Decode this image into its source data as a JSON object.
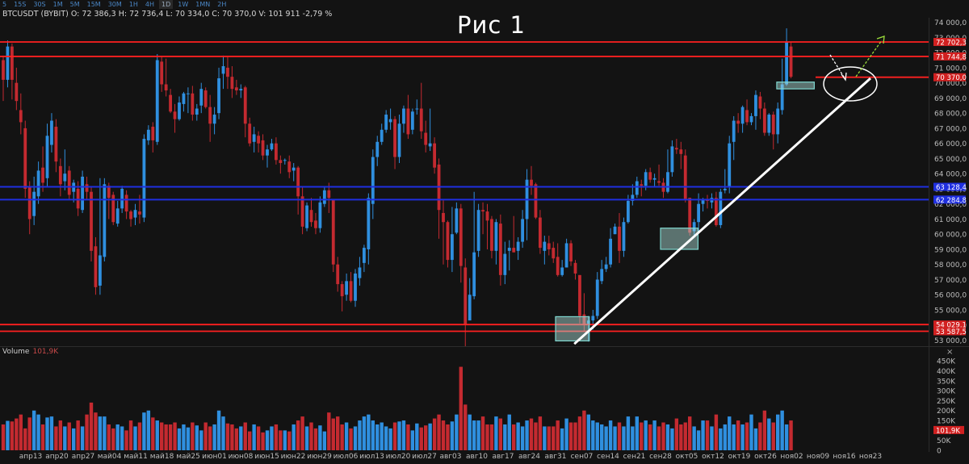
{
  "toolbar": {
    "timeframes": [
      "5",
      "15S",
      "30S",
      "1M",
      "5M",
      "15M",
      "30M",
      "1H",
      "4H",
      "1D",
      "1W",
      "1MN",
      "2H"
    ],
    "active": "1D"
  },
  "header": {
    "info": "BTCUSDT (BYBIT) O: 72 386,3 H: 72 736,4 L: 70 334,0 C: 70 370,0 V: 101 911  -2,79 %",
    "title": "Рис 1"
  },
  "volume_panel": {
    "label": "Volume",
    "value": "101,9K",
    "close": "×"
  },
  "colors": {
    "up": "#2f8fdf",
    "down": "#c42a30",
    "red_line": "#ff2020",
    "blue_line": "#1f2fe0",
    "trend": "#ffffff",
    "zone": "#7fd8d0"
  },
  "chart_data": {
    "type": "candlestick",
    "symbol": "BTCUSDT",
    "exchange": "BYBIT",
    "timeframe": "1D",
    "title": "Рис 1",
    "y_ticks": [
      "74 000,0",
      "73 000,0",
      "72 000,0",
      "71 000,0",
      "70 000,0",
      "69 000,0",
      "68 000,0",
      "67 000,0",
      "66 000,0",
      "65 000,0",
      "64 000,0",
      "63 000,0",
      "62 000,0",
      "61 000,0",
      "60 000,0",
      "59 000,0",
      "58 000,0",
      "57 000,0",
      "56 000,0",
      "55 000,0",
      "54 000,0",
      "53 000,0"
    ],
    "ylim": [
      52600,
      74300
    ],
    "x_ticks": [
      "апр13",
      "апр20",
      "апр27",
      "май04",
      "май11",
      "май18",
      "май25",
      "июн01",
      "июн08",
      "июн15",
      "июн22",
      "июн29",
      "июл06",
      "июл13",
      "июл20",
      "июл27",
      "авг03",
      "авг10",
      "авг17",
      "авг24",
      "авг31",
      "сен07",
      "сен14",
      "сен21",
      "сен28",
      "окт05",
      "окт12",
      "окт19",
      "окт26",
      "ноя02",
      "ноя09",
      "ноя16",
      "ноя23"
    ],
    "horizontal_levels": [
      {
        "value": 72702.3,
        "label": "72 702,3",
        "color": "red"
      },
      {
        "value": 71744.8,
        "label": "71 744,8",
        "color": "red"
      },
      {
        "value": 70370.0,
        "label": "70 370,0",
        "color": "red"
      },
      {
        "value": 63128.4,
        "label": "63 128,4",
        "color": "blue"
      },
      {
        "value": 62284.8,
        "label": "62 284,8",
        "color": "blue"
      },
      {
        "value": 54029.1,
        "label": "54 029,1",
        "color": "red"
      },
      {
        "value": 53587.5,
        "label": "53 587,5",
        "color": "red"
      }
    ],
    "trendline": {
      "from": {
        "date": "сен05",
        "value": 52750
      },
      "to": {
        "date": "ноя23",
        "value": 70300
      }
    },
    "zones": [
      {
        "from": "авг31",
        "to": "сен09",
        "low": 52950,
        "high": 54550
      },
      {
        "from": "сен28",
        "to": "окт08",
        "low": 59000,
        "high": 60400
      },
      {
        "from": "окт29",
        "to": "ноя08",
        "low": 69600,
        "high": 70050
      }
    ],
    "candles": [
      [
        71.5,
        70.2,
        71.8,
        68.8
      ],
      [
        70.2,
        72.4,
        72.8,
        69.7
      ],
      [
        72.4,
        70.2,
        72.6,
        68.9
      ],
      [
        70.0,
        68.8,
        71.0,
        68.2
      ],
      [
        68.2,
        67.4,
        69.3,
        66.6
      ],
      [
        67.0,
        63.0,
        67.5,
        62.4
      ],
      [
        63.1,
        61.0,
        63.5,
        60.0
      ],
      [
        61.2,
        62.8,
        63.8,
        60.6
      ],
      [
        62.5,
        64.2,
        64.8,
        62.0
      ],
      [
        64.4,
        63.4,
        65.8,
        62.8
      ],
      [
        63.7,
        66.5,
        67.3,
        63.1
      ],
      [
        65.9,
        67.5,
        68.0,
        65.4
      ],
      [
        67.1,
        64.8,
        67.6,
        64.1
      ],
      [
        64.5,
        63.3,
        65.0,
        62.5
      ],
      [
        63.5,
        64.0,
        65.6,
        62.9
      ],
      [
        64.2,
        62.6,
        64.5,
        62.3
      ],
      [
        62.8,
        63.4,
        63.6,
        62.1
      ],
      [
        63.0,
        61.7,
        63.5,
        61.2
      ],
      [
        61.6,
        63.8,
        64.2,
        61.4
      ],
      [
        63.3,
        62.8,
        63.8,
        62.3
      ],
      [
        62.8,
        58.9,
        63.1,
        58.2
      ],
      [
        59.2,
        56.5,
        59.8,
        56.0
      ],
      [
        56.6,
        58.6,
        63.7,
        56.0
      ],
      [
        58.5,
        63.3,
        63.7,
        58.2
      ],
      [
        63.2,
        62.4,
        63.4,
        61.0
      ],
      [
        62.6,
        60.8,
        62.8,
        60.6
      ],
      [
        60.7,
        61.7,
        62.2,
        60.5
      ],
      [
        61.7,
        63.0,
        63.2,
        61.4
      ],
      [
        62.6,
        61.5,
        62.9,
        61.0
      ],
      [
        61.5,
        61.0,
        61.6,
        60.5
      ],
      [
        61.1,
        61.6,
        62.0,
        60.6
      ],
      [
        61.5,
        61.3,
        62.6,
        60.7
      ],
      [
        61.1,
        66.3,
        66.6,
        60.8
      ],
      [
        66.2,
        66.9,
        67.2,
        65.9
      ],
      [
        67.1,
        66.2,
        67.4,
        65.4
      ],
      [
        66.1,
        71.5,
        71.9,
        65.9
      ],
      [
        71.4,
        69.9,
        71.7,
        69.4
      ],
      [
        69.9,
        69.5,
        71.6,
        69.1
      ],
      [
        69.2,
        68.1,
        69.6,
        68.0
      ],
      [
        68.1,
        67.6,
        68.6,
        66.7
      ],
      [
        67.6,
        68.7,
        69.1,
        67.5
      ],
      [
        68.6,
        69.3,
        69.4,
        68.1
      ],
      [
        69.3,
        69.3,
        69.7,
        68.0
      ],
      [
        69.3,
        67.9,
        69.8,
        67.5
      ],
      [
        67.9,
        68.3,
        68.6,
        67.5
      ],
      [
        68.5,
        69.6,
        70.0,
        68.0
      ],
      [
        69.5,
        68.4,
        69.7,
        68.3
      ],
      [
        68.4,
        67.3,
        69.2,
        66.1
      ],
      [
        67.3,
        67.9,
        68.4,
        66.6
      ],
      [
        68.0,
        70.3,
        71.0,
        67.6
      ],
      [
        70.6,
        71.1,
        71.8,
        69.6
      ],
      [
        71.0,
        70.4,
        71.7,
        69.6
      ],
      [
        70.4,
        69.6,
        71.1,
        69.0
      ],
      [
        69.7,
        69.5,
        70.2,
        69.2
      ],
      [
        69.5,
        69.6,
        69.9,
        69.0
      ],
      [
        69.7,
        67.3,
        69.8,
        66.4
      ],
      [
        67.3,
        66.0,
        67.7,
        65.8
      ],
      [
        66.1,
        66.6,
        67.1,
        65.4
      ],
      [
        66.5,
        66.0,
        66.8,
        65.4
      ],
      [
        66.2,
        65.2,
        66.6,
        64.9
      ],
      [
        65.2,
        65.6,
        65.9,
        64.4
      ],
      [
        65.6,
        66.0,
        66.3,
        65.5
      ],
      [
        66.0,
        64.9,
        66.4,
        64.6
      ],
      [
        64.9,
        64.7,
        65.2,
        64.0
      ],
      [
        64.9,
        64.9,
        65.0,
        64.6
      ],
      [
        64.8,
        64.1,
        65.2,
        63.7
      ],
      [
        64.2,
        64.4,
        64.7,
        63.5
      ],
      [
        64.4,
        62.5,
        64.5,
        61.3
      ],
      [
        62.5,
        60.5,
        63.1,
        60.0
      ],
      [
        60.4,
        61.9,
        62.1,
        60.2
      ],
      [
        61.6,
        60.8,
        62.4,
        60.5
      ],
      [
        60.9,
        60.4,
        61.4,
        60.0
      ],
      [
        60.4,
        62.1,
        62.5,
        60.1
      ],
      [
        62.0,
        62.9,
        63.1,
        61.8
      ],
      [
        62.9,
        62.4,
        63.4,
        61.4
      ],
      [
        62.3,
        58.0,
        62.3,
        57.5
      ],
      [
        58.0,
        56.7,
        58.5,
        56.2
      ],
      [
        56.7,
        55.9,
        56.9,
        54.9
      ],
      [
        56.0,
        56.9,
        57.4,
        55.6
      ],
      [
        56.9,
        55.6,
        57.5,
        55.5
      ],
      [
        55.6,
        57.4,
        57.7,
        55.2
      ],
      [
        57.1,
        57.8,
        58.5,
        56.6
      ],
      [
        58.1,
        59.1,
        59.3,
        57.5
      ],
      [
        59.0,
        62.4,
        62.7,
        58.0
      ],
      [
        62.0,
        65.1,
        65.6,
        61.0
      ],
      [
        65.1,
        66.1,
        66.5,
        64.5
      ],
      [
        66.1,
        66.9,
        67.3,
        65.9
      ],
      [
        66.9,
        67.9,
        68.2,
        66.7
      ],
      [
        67.4,
        67.6,
        68.3,
        66.9
      ],
      [
        67.6,
        65.1,
        67.8,
        64.3
      ],
      [
        65.1,
        67.3,
        67.9,
        64.7
      ],
      [
        67.3,
        68.3,
        68.5,
        66.7
      ],
      [
        68.3,
        66.6,
        69.2,
        66.3
      ],
      [
        66.9,
        68.1,
        68.3,
        66.6
      ],
      [
        68.3,
        68.3,
        68.9,
        67.9
      ],
      [
        68.3,
        66.8,
        70.0,
        66.3
      ],
      [
        66.7,
        65.9,
        67.5,
        65.4
      ],
      [
        65.8,
        66.0,
        68.3,
        65.5
      ],
      [
        66.0,
        64.4,
        66.4,
        64.0
      ],
      [
        64.6,
        61.6,
        65.0,
        59.7
      ],
      [
        61.4,
        60.8,
        62.3,
        58.0
      ],
      [
        60.8,
        58.3,
        60.9,
        57.8
      ],
      [
        58.3,
        60.0,
        61.8,
        57.5
      ],
      [
        60.1,
        61.7,
        62.1,
        60.0
      ],
      [
        61.7,
        57.9,
        62.0,
        56.8
      ],
      [
        57.8,
        54.0,
        58.4,
        52.6
      ],
      [
        54.3,
        56.0,
        57.1,
        54.4
      ],
      [
        55.9,
        58.8,
        62.8,
        55.7
      ],
      [
        58.9,
        61.6,
        62.0,
        58.5
      ],
      [
        61.6,
        61.5,
        62.1,
        60.0
      ],
      [
        61.5,
        60.9,
        62.0,
        59.0
      ],
      [
        61.0,
        58.9,
        61.2,
        58.4
      ],
      [
        58.9,
        60.8,
        61.0,
        58.0
      ],
      [
        60.7,
        57.3,
        61.3,
        56.6
      ],
      [
        57.3,
        58.7,
        59.5,
        56.7
      ],
      [
        58.9,
        59.1,
        59.6,
        57.6
      ],
      [
        59.1,
        58.8,
        61.2,
        58.8
      ],
      [
        58.9,
        59.5,
        59.8,
        58.3
      ],
      [
        59.5,
        61.0,
        61.6,
        59.1
      ],
      [
        61.0,
        63.6,
        64.3,
        59.6
      ],
      [
        63.6,
        63.2,
        64.5,
        62.6
      ],
      [
        63.3,
        61.1,
        63.4,
        61.0
      ],
      [
        61.1,
        59.1,
        61.6,
        58.7
      ],
      [
        58.9,
        59.5,
        59.9,
        58.0
      ],
      [
        59.4,
        59.0,
        59.9,
        58.6
      ],
      [
        59.1,
        58.4,
        59.5,
        58.1
      ],
      [
        58.5,
        57.3,
        59.4,
        57.2
      ],
      [
        57.3,
        57.8,
        58.3,
        57.2
      ],
      [
        57.8,
        59.4,
        59.7,
        57.8
      ],
      [
        59.4,
        58.2,
        59.6,
        57.9
      ],
      [
        58.1,
        57.4,
        58.3,
        57.0
      ],
      [
        57.3,
        54.6,
        57.3,
        54.1
      ],
      [
        54.7,
        54.0,
        56.1,
        53.6
      ],
      [
        54.0,
        54.3,
        54.6,
        52.9
      ],
      [
        54.3,
        54.6,
        55.0,
        53.7
      ],
      [
        54.6,
        57.0,
        57.5,
        54.4
      ],
      [
        56.9,
        57.7,
        58.3,
        56.7
      ],
      [
        57.7,
        58.0,
        58.5,
        57.5
      ],
      [
        58.0,
        59.7,
        60.4,
        57.8
      ],
      [
        60.0,
        60.5,
        60.7,
        60.0
      ],
      [
        60.5,
        58.9,
        61.4,
        58.1
      ],
      [
        58.9,
        60.8,
        61.1,
        58.5
      ],
      [
        60.8,
        62.2,
        62.6,
        60.7
      ],
      [
        62.2,
        62.6,
        63.3,
        61.9
      ],
      [
        62.6,
        63.5,
        63.8,
        62.4
      ],
      [
        63.3,
        63.2,
        63.6,
        62.5
      ],
      [
        63.2,
        64.1,
        64.3,
        62.9
      ],
      [
        64.1,
        63.6,
        64.4,
        63.4
      ],
      [
        63.6,
        63.7,
        64.0,
        63.1
      ],
      [
        63.5,
        63.4,
        64.6,
        63.2
      ],
      [
        63.4,
        62.8,
        63.7,
        62.4
      ],
      [
        62.8,
        64.1,
        65.6,
        62.7
      ],
      [
        64.1,
        65.8,
        66.2,
        63.8
      ],
      [
        65.7,
        65.6,
        66.3,
        65.3
      ],
      [
        65.6,
        65.3,
        66.1,
        64.3
      ],
      [
        65.2,
        62.3,
        65.6,
        62.1
      ],
      [
        62.4,
        60.1,
        62.4,
        59.9
      ],
      [
        60.2,
        60.8,
        61.0,
        59.9
      ],
      [
        60.8,
        62.0,
        62.7,
        60.2
      ],
      [
        62.0,
        62.3,
        62.4,
        61.5
      ],
      [
        62.3,
        62.2,
        62.6,
        61.7
      ],
      [
        62.1,
        62.4,
        62.7,
        61.7
      ],
      [
        62.4,
        60.6,
        62.8,
        60.5
      ],
      [
        60.6,
        62.8,
        63.0,
        60.4
      ],
      [
        62.9,
        63.0,
        64.3,
        62.7
      ],
      [
        63.1,
        66.0,
        66.5,
        62.7
      ],
      [
        66.1,
        67.5,
        67.8,
        64.9
      ],
      [
        67.5,
        67.3,
        68.0,
        66.7
      ],
      [
        67.3,
        68.4,
        68.5,
        66.7
      ],
      [
        68.2,
        67.4,
        68.9,
        67.2
      ],
      [
        67.4,
        67.8,
        68.0,
        67.2
      ],
      [
        67.8,
        69.2,
        69.5,
        66.9
      ],
      [
        69.1,
        68.3,
        69.4,
        67.6
      ],
      [
        68.3,
        66.7,
        68.7,
        66.5
      ],
      [
        66.7,
        67.9,
        68.0,
        66.5
      ],
      [
        67.9,
        66.6,
        68.1,
        65.6
      ],
      [
        66.6,
        68.3,
        68.7,
        66.0
      ],
      [
        68.2,
        69.9,
        71.6,
        67.9
      ],
      [
        69.9,
        72.7,
        73.6,
        69.8
      ],
      [
        72.4,
        70.4,
        72.7,
        70.3
      ]
    ],
    "volume": {
      "label": "Volume",
      "last": "101,9K",
      "y_ticks": [
        "450K",
        "400K",
        "350K",
        "300K",
        "250K",
        "200K",
        "150K",
        "100K",
        "50K",
        "0"
      ],
      "ylim": [
        0,
        475000
      ],
      "values_k": [
        130,
        148,
        145,
        160,
        180,
        110,
        165,
        200,
        180,
        130,
        165,
        170,
        120,
        150,
        120,
        140,
        110,
        150,
        120,
        180,
        240,
        190,
        170,
        170,
        130,
        110,
        130,
        120,
        100,
        150,
        120,
        140,
        190,
        200,
        165,
        150,
        140,
        130,
        130,
        140,
        110,
        130,
        115,
        140,
        125,
        100,
        140,
        120,
        130,
        200,
        170,
        135,
        130,
        110,
        120,
        140,
        95,
        130,
        120,
        90,
        100,
        120,
        130,
        100,
        100,
        95,
        130,
        150,
        170,
        120,
        140,
        110,
        125,
        95,
        190,
        160,
        170,
        130,
        140,
        110,
        120,
        150,
        170,
        180,
        150,
        130,
        140,
        120,
        110,
        140,
        145,
        150,
        130,
        100,
        135,
        115,
        125,
        135,
        160,
        180,
        150,
        130,
        145,
        180,
        420,
        230,
        180,
        150,
        150,
        170,
        130,
        130,
        170,
        160,
        130,
        180,
        130,
        140,
        120,
        150,
        160,
        140,
        170,
        120,
        120,
        120,
        150,
        110,
        160,
        140,
        140,
        170,
        200,
        180,
        150,
        140,
        130,
        120,
        150,
        120,
        140,
        120,
        170,
        120,
        170,
        140,
        150,
        130,
        150,
        120,
        140,
        130,
        110,
        160,
        130,
        140,
        170,
        120,
        100,
        150,
        150,
        120,
        180,
        110,
        130,
        170,
        130,
        150,
        130,
        140,
        180,
        110,
        140,
        200,
        160,
        140,
        180,
        200,
        130,
        150,
        130,
        170,
        200,
        102
      ]
    }
  }
}
